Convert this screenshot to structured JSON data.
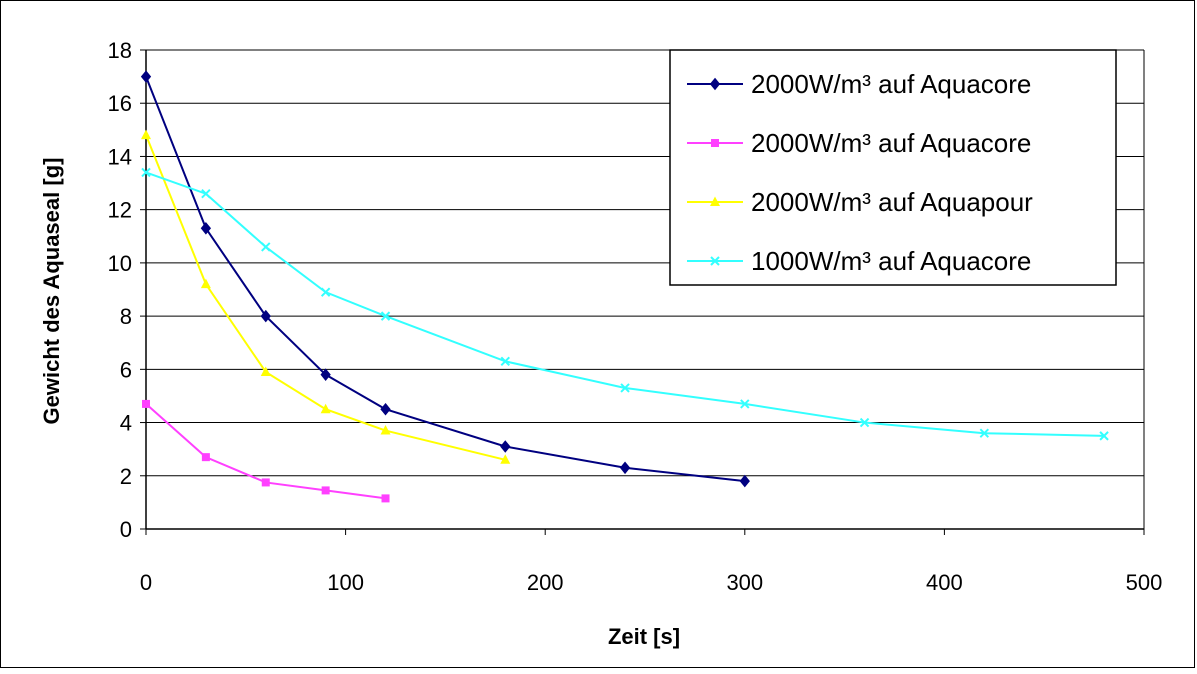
{
  "chart_data": {
    "type": "line",
    "title": "",
    "xlabel": "Zeit [s]",
    "ylabel": "Gewicht des Aquaseal [g]",
    "xlim": [
      0,
      500
    ],
    "ylim": [
      0,
      18
    ],
    "xticks": [
      0,
      100,
      200,
      300,
      400,
      500
    ],
    "yticks": [
      0,
      2,
      4,
      6,
      8,
      10,
      12,
      14,
      16,
      18
    ],
    "grid": "horizontal",
    "legend_position": "top-right",
    "series": [
      {
        "name": "2000W/m³ auf Aquacore",
        "color": "#000080",
        "marker": "diamond",
        "x": [
          0,
          30,
          60,
          90,
          120,
          180,
          240,
          300
        ],
        "y": [
          17.0,
          11.3,
          8.0,
          5.8,
          4.5,
          3.1,
          2.3,
          1.8
        ]
      },
      {
        "name": "2000W/m³ auf Aquacore",
        "color": "#ff40ff",
        "marker": "square",
        "x": [
          0,
          30,
          60,
          90,
          120
        ],
        "y": [
          4.7,
          2.7,
          1.75,
          1.45,
          1.15
        ]
      },
      {
        "name": "2000W/m³ auf Aquapour",
        "color": "#ffff00",
        "marker": "triangle",
        "x": [
          0,
          30,
          60,
          90,
          120,
          180
        ],
        "y": [
          14.8,
          9.2,
          5.9,
          4.5,
          3.7,
          2.6
        ]
      },
      {
        "name": "1000W/m³ auf Aquacore",
        "color": "#33ffff",
        "marker": "x",
        "x": [
          0,
          30,
          60,
          90,
          120,
          180,
          240,
          300,
          360,
          420,
          480
        ],
        "y": [
          13.4,
          12.6,
          10.6,
          8.9,
          8.0,
          6.3,
          5.3,
          4.7,
          4.0,
          3.6,
          3.5
        ]
      }
    ]
  }
}
